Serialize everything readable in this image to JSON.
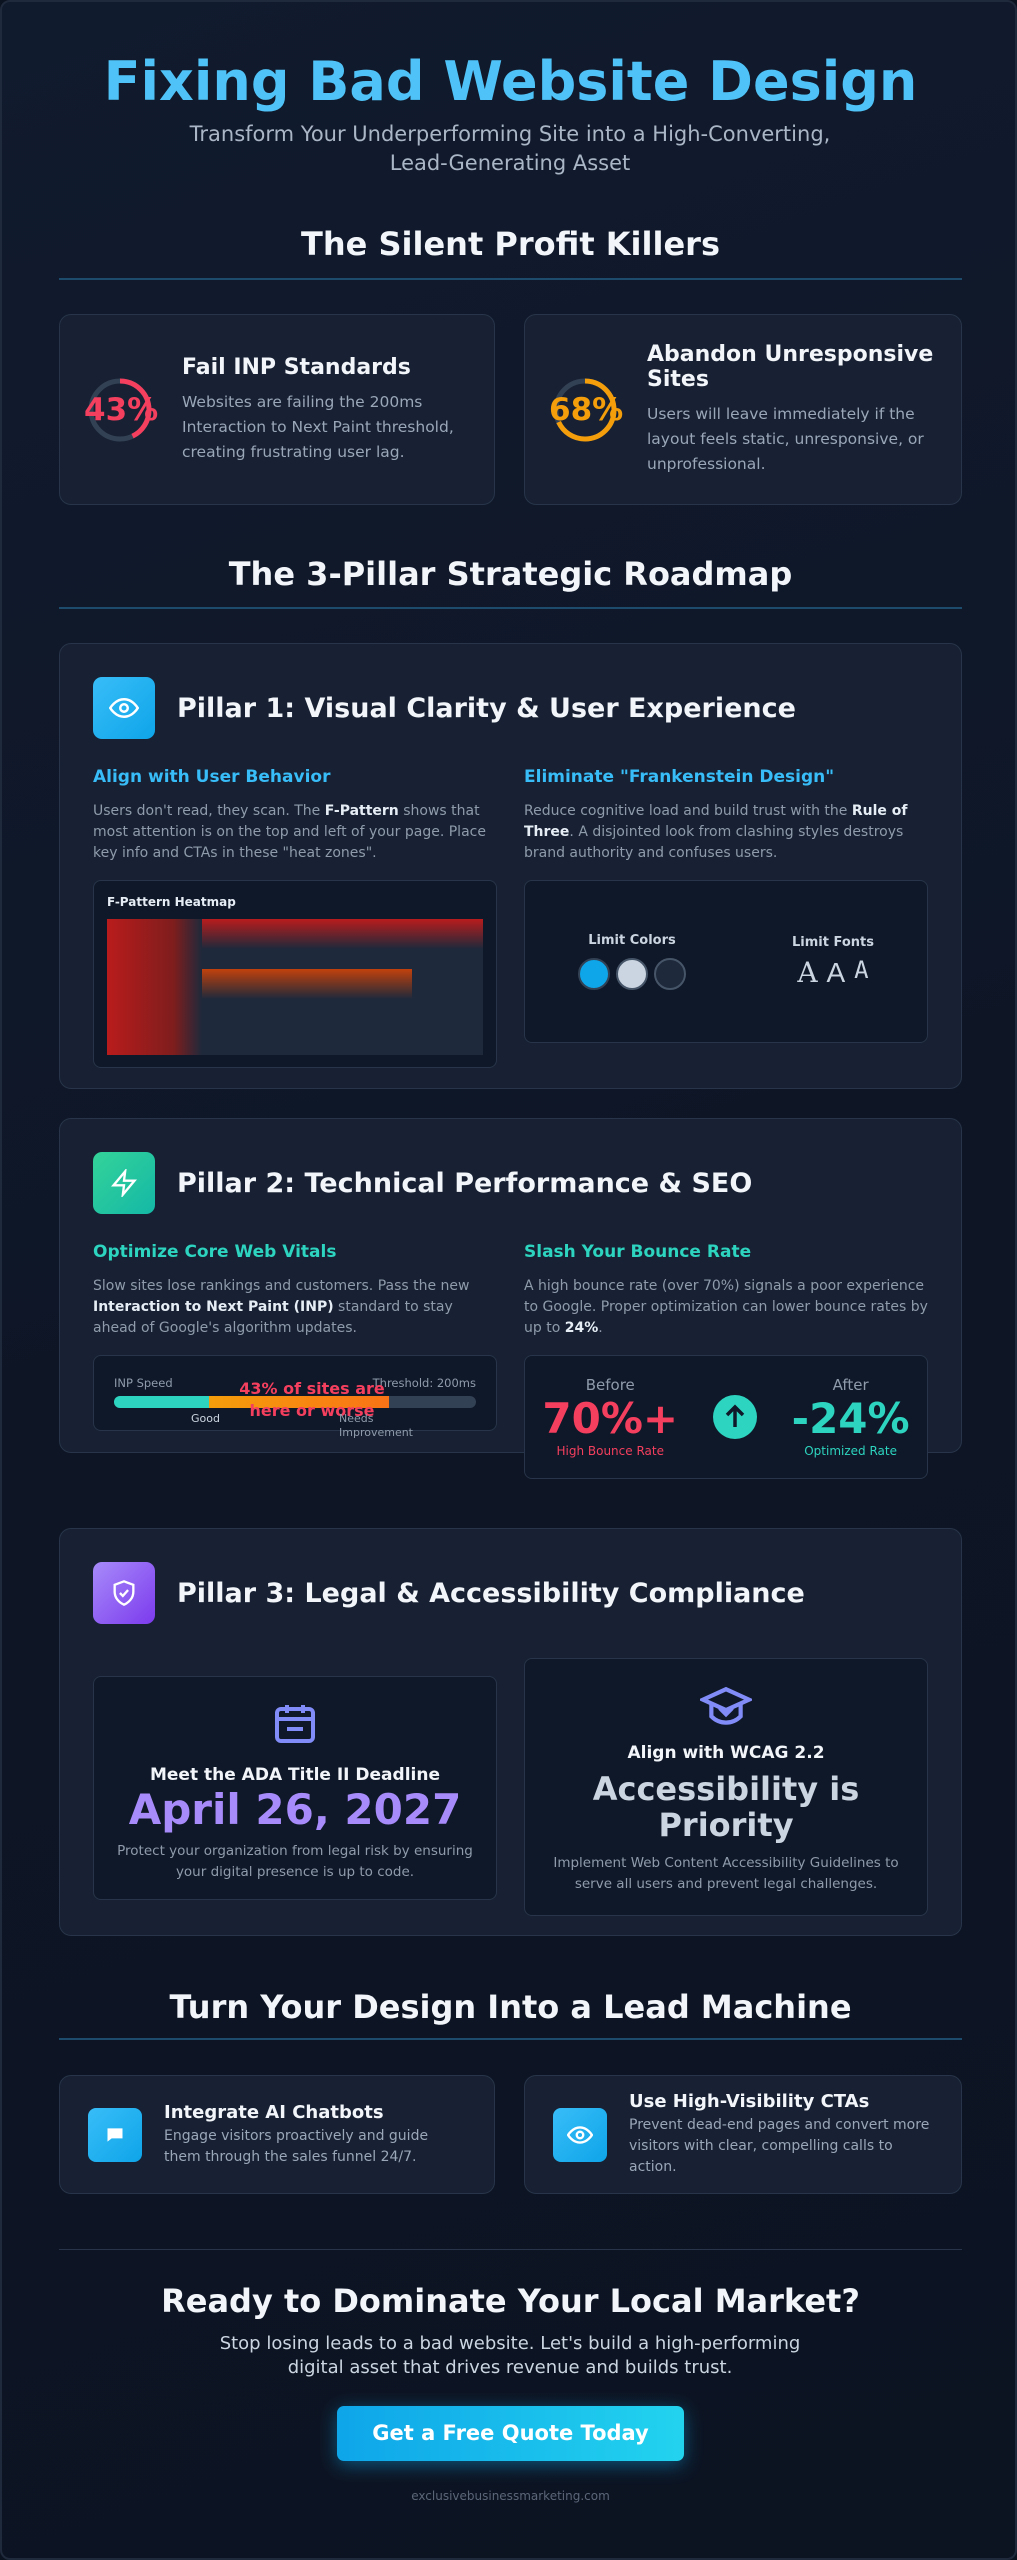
{
  "header": {
    "title": "Fixing Bad Website Design",
    "subtitle": "Transform Your Underperforming Site into a High-Converting, Lead-Generating Asset"
  },
  "killers": {
    "heading": "The Silent Profit Killers",
    "cards": [
      {
        "stat": "43%",
        "title": "Fail INP Standards",
        "body": "Websites are failing the 200ms Interaction to Next Paint threshold, creating frustrating user lag."
      },
      {
        "stat": "68%",
        "title": "Abandon Unresponsive Sites",
        "body": "Users will leave immediately if the layout feels static, unresponsive, or unprofessional."
      }
    ]
  },
  "roadmap": {
    "heading": "The 3-Pillar Strategic Roadmap",
    "pillars": [
      {
        "title": "Pillar 1: Visual Clarity & User Experience",
        "left": {
          "heading": "Align with User Behavior",
          "body": [
            "Users don't read, they scan. The ",
            "F-Pattern",
            " shows that most attention is on the top and left of your page. Place key info and CTAs in these \"heat zones\"."
          ],
          "widget_label": "F-Pattern Heatmap"
        },
        "right": {
          "heading": "Eliminate \"Frankenstein Design\"",
          "body": [
            "Reduce cognitive load and build trust with the ",
            "Rule of Three",
            ". A disjointed look from clashing styles destroys brand authority and confuses users."
          ],
          "colors_label": "Limit Colors",
          "fonts_label": "Limit Fonts",
          "font_samples": [
            "A",
            "A",
            "A"
          ]
        }
      },
      {
        "title": "Pillar 2: Technical Performance & SEO",
        "left": {
          "heading": "Optimize Core Web Vitals",
          "body": [
            "Slow sites lose rankings and customers. Pass the new ",
            "Interaction to Next Paint (INP)",
            " standard to stay ahead of Google's algorithm updates."
          ],
          "speed_label": "INP Speed",
          "threshold_label": "Threshold: 200ms",
          "marker_label": "43% of sites are here or worse",
          "good_label": "Good",
          "needs_label": "Needs Improvement"
        },
        "right": {
          "heading": "Slash Your Bounce Rate",
          "body": [
            "A high bounce rate (over 70%) signals a poor experience to Google. Proper optimization can lower bounce rates by up to ",
            "24%",
            "."
          ],
          "before": {
            "label": "Before",
            "value": "70%+",
            "caption": "High Bounce Rate"
          },
          "after": {
            "label": "After",
            "value": "-24%",
            "caption": "Optimized Rate"
          }
        }
      },
      {
        "title": "Pillar 3: Legal & Accessibility Compliance",
        "left": {
          "heading": "Meet the ADA Title II Deadline",
          "date": "April 26, 2027",
          "body": "Protect your organization from legal risk by ensuring your digital presence is up to code."
        },
        "right": {
          "heading": "Align with WCAG 2.2",
          "big": "Accessibility is Priority",
          "body": "Implement Web Content Accessibility Guidelines to serve all users and prevent legal challenges."
        }
      }
    ]
  },
  "leads": {
    "heading": "Turn Your Design Into a Lead Machine",
    "cards": [
      {
        "title": "Integrate AI Chatbots",
        "body": "Engage visitors proactively and guide them through the sales funnel 24/7."
      },
      {
        "title": "Use High-Visibility CTAs",
        "body": "Prevent dead-end pages and convert more visitors with clear, compelling calls to action."
      }
    ]
  },
  "cta": {
    "heading": "Ready to Dominate Your Local Market?",
    "body": "Stop losing leads to a bad website. Let's build a high-performing digital asset that drives revenue and builds trust.",
    "button": "Get a Free Quote Today",
    "footer": "exclusivebusinessmarketing.com"
  }
}
